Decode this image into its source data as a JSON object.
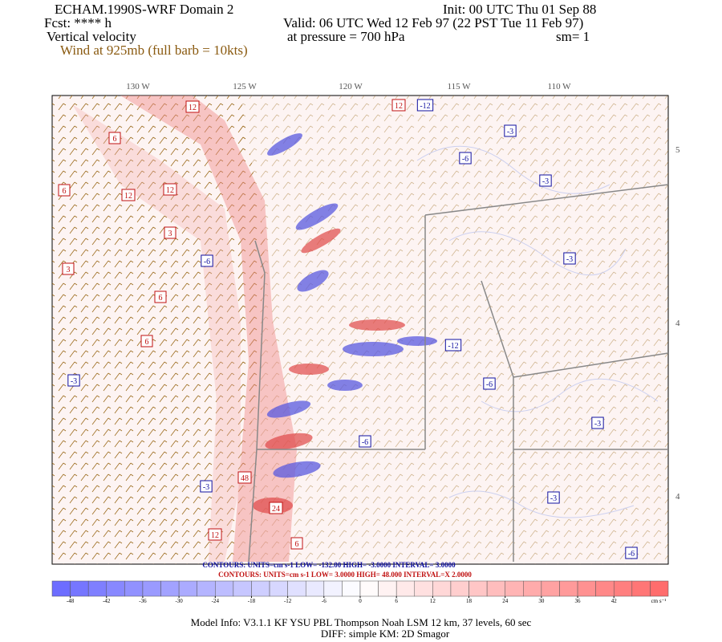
{
  "header": {
    "title": "ECHAM.1990S-WRF Domain 2",
    "init": "Init: 00 UTC Thu 01 Sep 88",
    "forecast": "Fcst: **** h",
    "valid": "Valid: 06 UTC Wed 12 Feb 97 (22 PST Tue 11 Feb 97)",
    "field": "Vertical velocity",
    "level": "at pressure =  700 hPa",
    "smoothing": "sm= 1",
    "wind": "Wind at 925mb (full barb = 10kts)"
  },
  "map": {
    "longitude_labels": [
      "130 W",
      "125 W",
      "120 W",
      "115 W",
      "110 W"
    ],
    "latitude_labels": [
      "5",
      "4",
      "4"
    ],
    "red_contour_labels": [
      12,
      6,
      12,
      12,
      6,
      3,
      6,
      3,
      48,
      24,
      12,
      6,
      12,
      6
    ],
    "blue_contour_labels": [
      -12,
      -3,
      -3,
      -6,
      -3,
      -6,
      -3,
      -12,
      -6,
      -3,
      -3,
      -6,
      -3,
      -6
    ]
  },
  "contour_info": {
    "blue": "CONTOURS:  UNITS=cm s-1  LOW= -132.00   HIGH= -3.0000   INTERVAL= 3.0000",
    "red": "CONTOURS:  UNITS=cm s-1  LOW=  3.0000   HIGH=  48.000   INTERVAL=X  2.0000"
  },
  "colorbar": {
    "range": [
      -51,
      51
    ],
    "ticks": [
      -48,
      -42,
      -36,
      -30,
      -24,
      -18,
      -12,
      -6,
      0,
      6,
      12,
      18,
      24,
      30,
      36,
      42
    ],
    "units": "cm s⁻¹"
  },
  "footer": {
    "model_info": "Model Info: V3.1.1    KF     YSU PBL  Thompson    Noah LSM  12 km,    37 levels,    60 sec",
    "diff": "DIFF: simple KM: 2D Smagor"
  }
}
